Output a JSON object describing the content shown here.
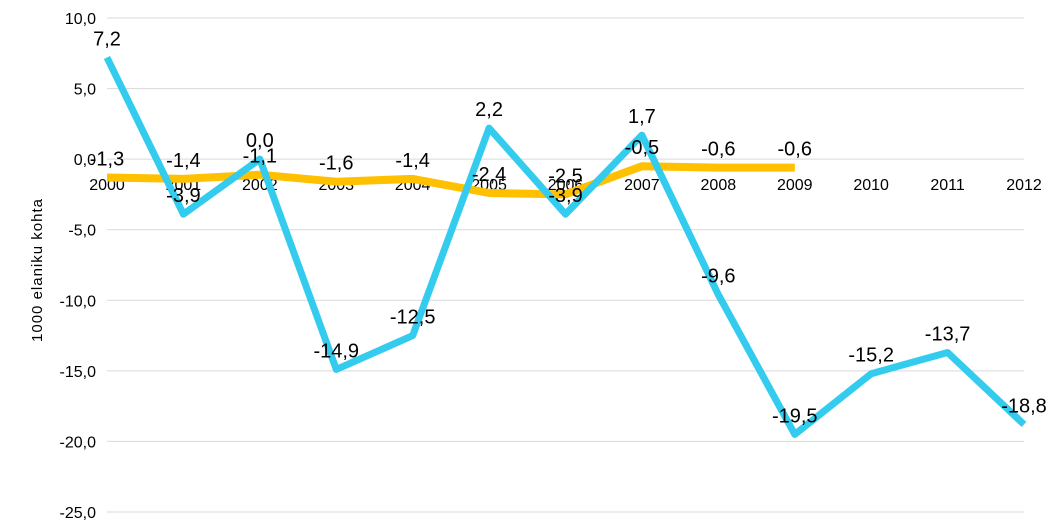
{
  "chart_data": {
    "type": "line",
    "ylabel": "1000 elaniku kohta",
    "categories": [
      "2000",
      "2001",
      "2002",
      "2003",
      "2004",
      "2005",
      "2006",
      "2007",
      "2008",
      "2009",
      "2010",
      "2011",
      "2012"
    ],
    "ylim": [
      -25,
      10
    ],
    "y_ticks": [
      "10,0",
      "5,0",
      "0,0",
      "-5,0",
      "-10,0",
      "-15,0",
      "-20,0",
      "-25,0"
    ],
    "grid": true,
    "legend": "none",
    "series": [
      {
        "color": "#FFC000",
        "values": [
          -1.3,
          -1.4,
          -1.1,
          -1.6,
          -1.4,
          -2.4,
          -2.5,
          -0.5,
          -0.6,
          -0.6,
          null,
          null,
          null
        ],
        "labels": [
          "-1,3",
          "-1,4",
          "-1,1",
          "-1,6",
          "-1,4",
          "-2,4",
          "-2,5",
          "-0,5",
          "-0,6",
          "-0,6",
          null,
          null,
          null
        ]
      },
      {
        "color": "#33CCEE",
        "values": [
          7.2,
          -3.9,
          0.0,
          -14.9,
          -12.5,
          2.2,
          -3.9,
          1.7,
          -9.6,
          -19.5,
          -15.2,
          -13.7,
          -18.8
        ],
        "labels": [
          "7,2",
          "-3,9",
          "0,0",
          "-14,9",
          "-12,5",
          "2,2",
          "-3,9",
          "1,7",
          "-9,6",
          "-19,5",
          "-15,2",
          "-13,7",
          "-18,8"
        ]
      }
    ]
  }
}
